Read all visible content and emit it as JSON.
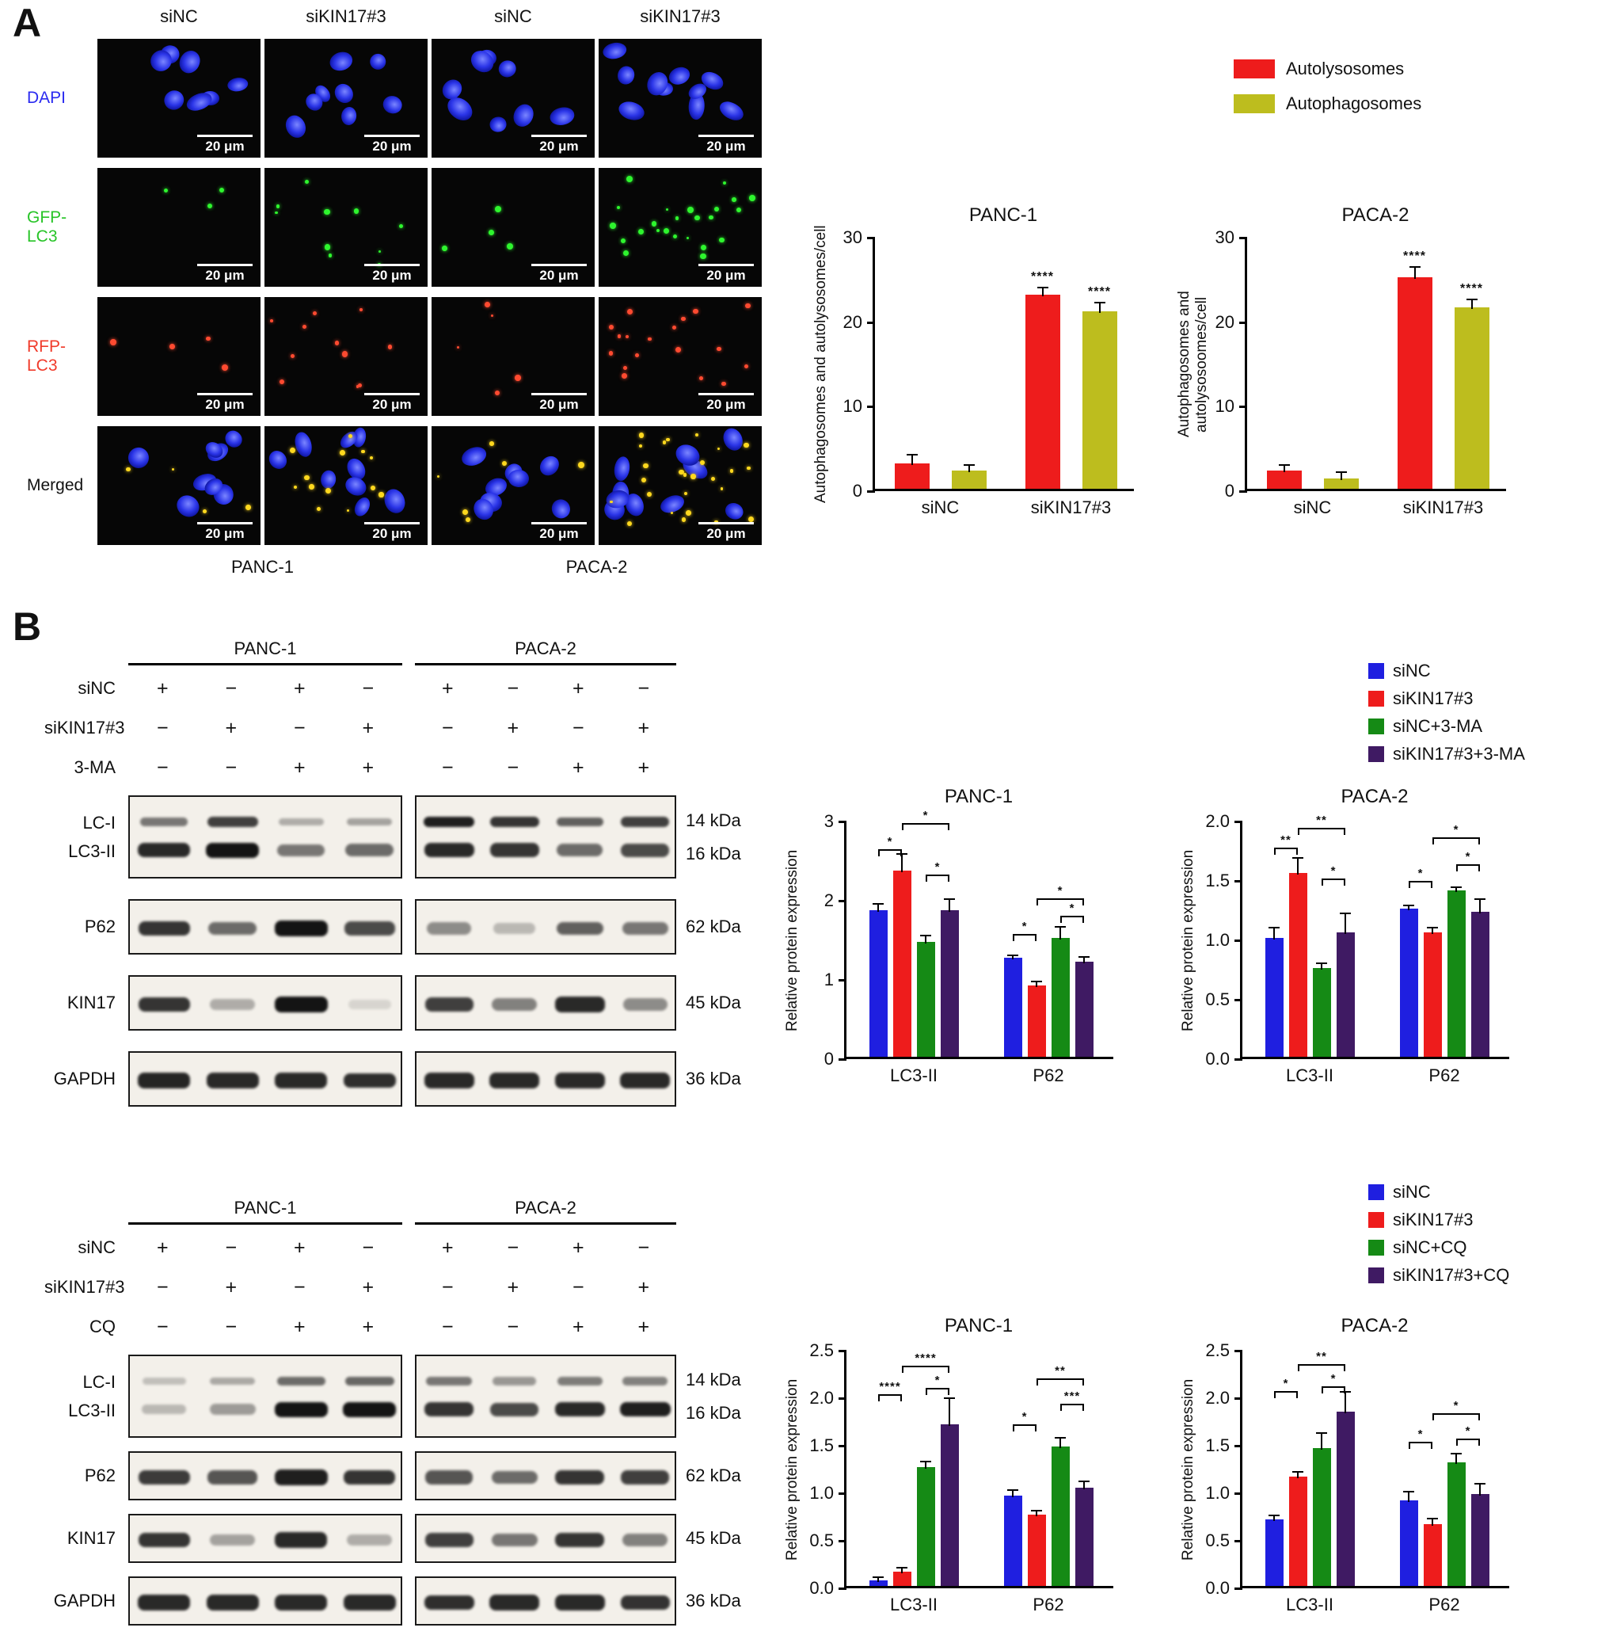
{
  "panel_a": {
    "label": "A",
    "col_headers": [
      "siNC",
      "siKIN17#3",
      "siNC",
      "siKIN17#3"
    ],
    "rows": [
      {
        "label": "DAPI",
        "color": "#2a2af0",
        "type": "dapi",
        "nuclei": [
          7,
          8,
          8,
          10
        ],
        "dots": [
          0,
          0,
          0,
          0
        ]
      },
      {
        "label": "GFP-LC3",
        "color": "#27c427",
        "type": "gfp",
        "nuclei": [
          0,
          0,
          0,
          0
        ],
        "dots": [
          3,
          10,
          4,
          24
        ]
      },
      {
        "label": "RFP-LC3",
        "color": "#f03a2a",
        "type": "rfp",
        "nuclei": [
          0,
          0,
          0,
          0
        ],
        "dots": [
          4,
          11,
          5,
          18
        ]
      },
      {
        "label": "Merged",
        "color": "#111111",
        "type": "merged",
        "nuclei": [
          8,
          9,
          8,
          10
        ],
        "dots": [
          4,
          13,
          6,
          26
        ]
      }
    ],
    "scale_bar": "20 μm",
    "group_labels": [
      "PANC-1",
      "PACA-2"
    ],
    "legend": [
      {
        "label": "Autolysosomes",
        "color": "#ee1c1c"
      },
      {
        "label": "Autophagosomes",
        "color": "#bdbd1e"
      }
    ]
  },
  "panel_b": {
    "label": "B",
    "sections": [
      {
        "cell_lines": [
          "PANC-1",
          "PACA-2"
        ],
        "treatments": [
          {
            "label": "siNC",
            "values": [
              "+",
              "−",
              "+",
              "−",
              "+",
              "−",
              "+",
              "−"
            ]
          },
          {
            "label": "siKIN17#3",
            "values": [
              "−",
              "+",
              "−",
              "+",
              "−",
              "+",
              "−",
              "+"
            ]
          },
          {
            "label": "3-MA",
            "values": [
              "−",
              "−",
              "+",
              "+",
              "−",
              "−",
              "+",
              "+"
            ]
          }
        ],
        "rows": [
          {
            "labels": [
              "LC-I",
              "LC3-II"
            ],
            "kdas": [
              "14 kDa",
              "16 kDa"
            ],
            "tall": true,
            "boxes": [
              [
                [
                  0.55,
                  0.8,
                  0.3,
                  0.35
                ],
                [
                  0.9,
                  1,
                  0.55,
                  0.6
                ]
              ],
              [
                [
                  0.95,
                  0.85,
                  0.65,
                  0.8
                ],
                [
                  0.9,
                  0.85,
                  0.6,
                  0.75
                ]
              ]
            ]
          },
          {
            "labels": [
              "P62"
            ],
            "kdas": [
              "62 kDa"
            ],
            "boxes": [
              [
                [
                  0.85,
                  0.6,
                  1,
                  0.75
                ]
              ],
              [
                [
                  0.45,
                  0.25,
                  0.65,
                  0.55
                ]
              ]
            ]
          },
          {
            "labels": [
              "KIN17"
            ],
            "kdas": [
              "45 kDa"
            ],
            "boxes": [
              [
                [
                  0.85,
                  0.3,
                  1,
                  0.12
                ]
              ],
              [
                [
                  0.8,
                  0.5,
                  0.9,
                  0.45
                ]
              ]
            ]
          },
          {
            "labels": [
              "GAPDH"
            ],
            "kdas": [
              "36 kDa"
            ],
            "boxes": [
              [
                [
                  0.92,
                  0.9,
                  0.9,
                  0.88
                ]
              ],
              [
                [
                  0.9,
                  0.9,
                  0.9,
                  0.9
                ]
              ]
            ]
          }
        ],
        "legend": [
          {
            "label": "siNC",
            "color": "#1f1fe0"
          },
          {
            "label": "siKIN17#3",
            "color": "#ee1c1c"
          },
          {
            "label": "siNC+3-MA",
            "color": "#158a15"
          },
          {
            "label": "siKIN17#3+3-MA",
            "color": "#3f1a63"
          }
        ]
      },
      {
        "cell_lines": [
          "PANC-1",
          "PACA-2"
        ],
        "treatments": [
          {
            "label": "siNC",
            "values": [
              "+",
              "−",
              "+",
              "−",
              "+",
              "−",
              "+",
              "−"
            ]
          },
          {
            "label": "siKIN17#3",
            "values": [
              "−",
              "+",
              "−",
              "+",
              "−",
              "+",
              "−",
              "+"
            ]
          },
          {
            "label": "CQ",
            "values": [
              "−",
              "−",
              "+",
              "+",
              "−",
              "−",
              "+",
              "+"
            ]
          }
        ],
        "rows": [
          {
            "labels": [
              "LC-I",
              "LC3-II"
            ],
            "kdas": [
              "14 kDa",
              "16 kDa"
            ],
            "tall": true,
            "boxes": [
              [
                [
                  0.22,
                  0.32,
                  0.6,
                  0.62
                ],
                [
                  0.25,
                  0.38,
                  1,
                  1
                ]
              ],
              [
                [
                  0.55,
                  0.4,
                  0.52,
                  0.5
                ],
                [
                  0.85,
                  0.75,
                  0.9,
                  0.95
                ]
              ]
            ]
          },
          {
            "labels": [
              "P62"
            ],
            "kdas": [
              "62 kDa"
            ],
            "boxes": [
              [
                [
                  0.82,
                  0.7,
                  0.95,
                  0.85
                ]
              ],
              [
                [
                  0.7,
                  0.6,
                  0.85,
                  0.8
                ]
              ]
            ]
          },
          {
            "labels": [
              "KIN17"
            ],
            "kdas": [
              "45 kDa"
            ],
            "boxes": [
              [
                [
                  0.85,
                  0.35,
                  0.9,
                  0.3
                ]
              ],
              [
                [
                  0.8,
                  0.55,
                  0.85,
                  0.5
                ]
              ]
            ]
          },
          {
            "labels": [
              "GAPDH"
            ],
            "kdas": [
              "36 kDa"
            ],
            "boxes": [
              [
                [
                  0.9,
                  0.9,
                  0.9,
                  0.9
                ]
              ],
              [
                [
                  0.88,
                  0.9,
                  0.9,
                  0.86
                ]
              ]
            ]
          }
        ],
        "legend": [
          {
            "label": "siNC",
            "color": "#1f1fe0"
          },
          {
            "label": "siKIN17#3",
            "color": "#ee1c1c"
          },
          {
            "label": "siNC+CQ",
            "color": "#158a15"
          },
          {
            "label": "siKIN17#3+CQ",
            "color": "#3f1a63"
          }
        ]
      }
    ]
  },
  "chart_data": [
    {
      "id": "a_panc1",
      "type": "bar",
      "title": "PANC-1",
      "ylabel": "Autophagosomes and autolysosomes/cell",
      "ylim": [
        0,
        30
      ],
      "yticks": [
        "0",
        "10",
        "20",
        "30"
      ],
      "categories": [
        "siNC",
        "siKIN17#3"
      ],
      "series": [
        {
          "name": "Autolysosomes",
          "color": "#ee1c1c",
          "values": [
            3,
            23
          ],
          "errors": [
            0.9,
            0.7
          ]
        },
        {
          "name": "Autophagosomes",
          "color": "#bdbd1e",
          "values": [
            2.2,
            21
          ],
          "errors": [
            0.5,
            0.9
          ]
        }
      ],
      "annotations": [
        {
          "group": 1,
          "series": 0,
          "label": "****"
        },
        {
          "group": 1,
          "series": 1,
          "label": "****"
        }
      ]
    },
    {
      "id": "a_paca2",
      "type": "bar",
      "title": "PACA-2",
      "ylabel": "Autophagosomes and autolysosoomes/cell",
      "ylim": [
        0,
        30
      ],
      "yticks": [
        "0",
        "10",
        "20",
        "30"
      ],
      "categories": [
        "siNC",
        "siKIN17#3"
      ],
      "series": [
        {
          "name": "Autolysosomes",
          "color": "#ee1c1c",
          "values": [
            2.2,
            25
          ],
          "errors": [
            0.5,
            1.2
          ]
        },
        {
          "name": "Autophagosomes",
          "color": "#bdbd1e",
          "values": [
            1.2,
            21.5
          ],
          "errors": [
            0.7,
            0.8
          ]
        }
      ],
      "annotations": [
        {
          "group": 1,
          "series": 0,
          "label": "****"
        },
        {
          "group": 1,
          "series": 1,
          "label": "****"
        }
      ]
    },
    {
      "id": "b1_panc1",
      "type": "bar",
      "title": "PANC-1",
      "ylabel": "Relative protein expression",
      "ylim": [
        0,
        3
      ],
      "yticks": [
        "0",
        "1",
        "2",
        "3"
      ],
      "categories": [
        "LC3-II",
        "P62"
      ],
      "series": [
        {
          "name": "siNC",
          "color": "#1f1fe0",
          "values": [
            1.85,
            1.25
          ],
          "errors": [
            0.07,
            0.02
          ]
        },
        {
          "name": "siKIN17#3",
          "color": "#ee1c1c",
          "values": [
            2.35,
            0.9
          ],
          "errors": [
            0.2,
            0.04
          ]
        },
        {
          "name": "siNC+3-MA",
          "color": "#158a15",
          "values": [
            1.45,
            1.5
          ],
          "errors": [
            0.07,
            0.13
          ]
        },
        {
          "name": "siKIN17#3+3-MA",
          "color": "#3f1a63",
          "values": [
            1.85,
            1.2
          ],
          "errors": [
            0.13,
            0.05
          ]
        }
      ],
      "brackets": [
        {
          "category": 0,
          "from": 0,
          "to": 1,
          "label": "*",
          "y": 2.62
        },
        {
          "category": 0,
          "from": 1,
          "to": 3,
          "label": "*",
          "y": 2.95
        },
        {
          "category": 0,
          "from": 2,
          "to": 3,
          "label": "*",
          "y": 2.3
        },
        {
          "category": 1,
          "from": 0,
          "to": 1,
          "label": "*",
          "y": 1.55
        },
        {
          "category": 1,
          "from": 1,
          "to": 3,
          "label": "*",
          "y": 2.0
        },
        {
          "category": 1,
          "from": 2,
          "to": 3,
          "label": "*",
          "y": 1.78
        }
      ]
    },
    {
      "id": "b1_paca2",
      "type": "bar",
      "title": "PACA-2",
      "ylabel": "Relative protein expression",
      "ylim": [
        0,
        2
      ],
      "yticks": [
        "0.0",
        "0.5",
        "1.0",
        "1.5",
        "2.0"
      ],
      "categories": [
        "LC3-II",
        "P62"
      ],
      "series": [
        {
          "name": "siNC",
          "color": "#1f1fe0",
          "values": [
            1.0,
            1.25
          ],
          "errors": [
            0.08,
            0.02
          ]
        },
        {
          "name": "siKIN17#3",
          "color": "#ee1c1c",
          "values": [
            1.55,
            1.05
          ],
          "errors": [
            0.12,
            0.03
          ]
        },
        {
          "name": "siNC+3-MA",
          "color": "#158a15",
          "values": [
            0.75,
            1.4
          ],
          "errors": [
            0.03,
            0.02
          ]
        },
        {
          "name": "siKIN17#3+3-MA",
          "color": "#3f1a63",
          "values": [
            1.05,
            1.22
          ],
          "errors": [
            0.15,
            0.1
          ]
        }
      ],
      "brackets": [
        {
          "category": 0,
          "from": 0,
          "to": 1,
          "label": "**",
          "y": 1.76
        },
        {
          "category": 0,
          "from": 1,
          "to": 3,
          "label": "**",
          "y": 1.93
        },
        {
          "category": 0,
          "from": 2,
          "to": 3,
          "label": "*",
          "y": 1.5
        },
        {
          "category": 1,
          "from": 0,
          "to": 1,
          "label": "*",
          "y": 1.48
        },
        {
          "category": 1,
          "from": 1,
          "to": 3,
          "label": "*",
          "y": 1.85
        },
        {
          "category": 1,
          "from": 2,
          "to": 3,
          "label": "*",
          "y": 1.62
        }
      ]
    },
    {
      "id": "b2_panc1",
      "type": "bar",
      "title": "PANC-1",
      "ylabel": "Relative protein expression",
      "ylim": [
        0,
        2.5
      ],
      "yticks": [
        "0.0",
        "0.5",
        "1.0",
        "1.5",
        "2.0",
        "2.5"
      ],
      "categories": [
        "LC3-II",
        "P62"
      ],
      "series": [
        {
          "name": "siNC",
          "color": "#1f1fe0",
          "values": [
            0.06,
            0.95
          ],
          "errors": [
            0.02,
            0.05
          ]
        },
        {
          "name": "siKIN17#3",
          "color": "#ee1c1c",
          "values": [
            0.15,
            0.75
          ],
          "errors": [
            0.03,
            0.03
          ]
        },
        {
          "name": "siNC+CQ",
          "color": "#158a15",
          "values": [
            1.25,
            1.47
          ],
          "errors": [
            0.05,
            0.08
          ]
        },
        {
          "name": "siKIN17#3+CQ",
          "color": "#3f1a63",
          "values": [
            1.7,
            1.03
          ],
          "errors": [
            0.27,
            0.06
          ]
        }
      ],
      "brackets": [
        {
          "category": 0,
          "from": 0,
          "to": 1,
          "label": "****",
          "y": 2.02
        },
        {
          "category": 0,
          "from": 1,
          "to": 3,
          "label": "****",
          "y": 2.32
        },
        {
          "category": 0,
          "from": 2,
          "to": 3,
          "label": "*",
          "y": 2.08
        },
        {
          "category": 1,
          "from": 0,
          "to": 1,
          "label": "*",
          "y": 1.7
        },
        {
          "category": 1,
          "from": 1,
          "to": 3,
          "label": "**",
          "y": 2.18
        },
        {
          "category": 1,
          "from": 2,
          "to": 3,
          "label": "***",
          "y": 1.92
        }
      ]
    },
    {
      "id": "b2_paca2",
      "type": "bar",
      "title": "PACA-2",
      "ylabel": "Relative protein expression",
      "ylim": [
        0,
        2.5
      ],
      "yticks": [
        "0.0",
        "0.5",
        "1.0",
        "1.5",
        "2.0",
        "2.5"
      ],
      "categories": [
        "LC3-II",
        "P62"
      ],
      "series": [
        {
          "name": "siNC",
          "color": "#1f1fe0",
          "values": [
            0.7,
            0.9
          ],
          "errors": [
            0.03,
            0.08
          ]
        },
        {
          "name": "siKIN17#3",
          "color": "#ee1c1c",
          "values": [
            1.15,
            0.65
          ],
          "errors": [
            0.04,
            0.05
          ]
        },
        {
          "name": "siNC+CQ",
          "color": "#158a15",
          "values": [
            1.45,
            1.3
          ],
          "errors": [
            0.15,
            0.08
          ]
        },
        {
          "name": "siKIN17#3+CQ",
          "color": "#3f1a63",
          "values": [
            1.83,
            0.97
          ],
          "errors": [
            0.2,
            0.1
          ]
        }
      ],
      "brackets": [
        {
          "category": 0,
          "from": 0,
          "to": 1,
          "label": "*",
          "y": 2.05
        },
        {
          "category": 0,
          "from": 1,
          "to": 3,
          "label": "**",
          "y": 2.33
        },
        {
          "category": 0,
          "from": 2,
          "to": 3,
          "label": "*",
          "y": 2.1
        },
        {
          "category": 1,
          "from": 0,
          "to": 1,
          "label": "*",
          "y": 1.52
        },
        {
          "category": 1,
          "from": 1,
          "to": 3,
          "label": "*",
          "y": 1.82
        },
        {
          "category": 1,
          "from": 2,
          "to": 3,
          "label": "*",
          "y": 1.55
        }
      ]
    }
  ]
}
